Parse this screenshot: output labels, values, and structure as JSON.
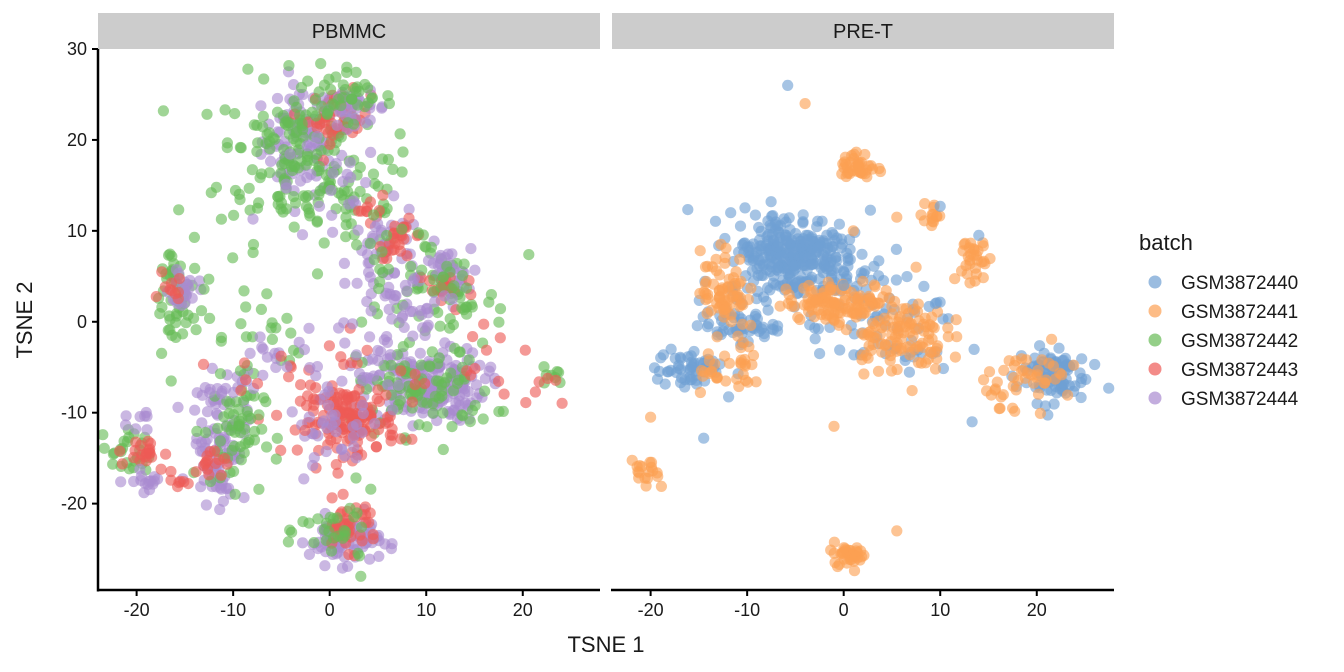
{
  "chart_data": {
    "type": "scatter",
    "xlabel": "TSNE 1",
    "ylabel": "TSNE 2",
    "xlim": [
      -24,
      28
    ],
    "ylim": [
      -29.5,
      30
    ],
    "x_ticks": [
      -20,
      -10,
      0,
      10,
      20
    ],
    "y_ticks": [
      -20,
      -10,
      0,
      10,
      20,
      30
    ],
    "grid": false,
    "legend_position": "right",
    "legend_title": "batch",
    "series": [
      {
        "name": "GSM3872440",
        "color": "#6f9fd3"
      },
      {
        "name": "GSM3872441",
        "color": "#fca052"
      },
      {
        "name": "GSM3872442",
        "color": "#66bb55"
      },
      {
        "name": "GSM3872443",
        "color": "#ee5a55"
      },
      {
        "name": "GSM3872444",
        "color": "#a98ad0"
      }
    ],
    "panels": [
      {
        "label": "PBMMC",
        "clusters": [
          {
            "series": 4,
            "cx": -3,
            "cy": 20,
            "sx": 2.0,
            "sy": 3.0,
            "n": 90
          },
          {
            "series": 2,
            "cx": -4,
            "cy": 18,
            "sx": 3.8,
            "sy": 4.5,
            "n": 140
          },
          {
            "series": 3,
            "cx": 1,
            "cy": 22.5,
            "sx": 1.6,
            "sy": 1.4,
            "n": 45
          },
          {
            "series": 4,
            "cx": 2.5,
            "cy": 23.5,
            "sx": 1.8,
            "sy": 0.9,
            "n": 30
          },
          {
            "series": 2,
            "cx": 1,
            "cy": 24.5,
            "sx": 2.8,
            "sy": 1.5,
            "n": 45
          },
          {
            "series": 2,
            "cx": 2,
            "cy": 14,
            "sx": 3.5,
            "sy": 3.0,
            "n": 45
          },
          {
            "series": 4,
            "cx": 0,
            "cy": 14,
            "sx": 3.0,
            "sy": 3.0,
            "n": 25
          },
          {
            "series": 3,
            "cx": 4,
            "cy": 12.5,
            "sx": 1.0,
            "sy": 1.0,
            "n": 10
          },
          {
            "series": 4,
            "cx": 6,
            "cy": 7,
            "sx": 2.0,
            "sy": 2.8,
            "n": 55
          },
          {
            "series": 3,
            "cx": 7.5,
            "cy": 9,
            "sx": 1.2,
            "sy": 1.0,
            "n": 25
          },
          {
            "series": 2,
            "cx": 8,
            "cy": 5,
            "sx": 4.0,
            "sy": 3.0,
            "n": 50
          },
          {
            "series": 4,
            "cx": 12,
            "cy": 5,
            "sx": 1.3,
            "sy": 1.5,
            "n": 40
          },
          {
            "series": 3,
            "cx": 12,
            "cy": 3.5,
            "sx": 1.5,
            "sy": 1.2,
            "n": 20
          },
          {
            "series": 2,
            "cx": 13,
            "cy": 3,
            "sx": 2.2,
            "sy": 2.5,
            "n": 30
          },
          {
            "series": 4,
            "cx": 9,
            "cy": 1,
            "sx": 2.5,
            "sy": 2.0,
            "n": 30
          },
          {
            "series": 4,
            "cx": 10,
            "cy": -7,
            "sx": 3.0,
            "sy": 2.0,
            "n": 190
          },
          {
            "series": 2,
            "cx": 10,
            "cy": -7.5,
            "sx": 3.5,
            "sy": 2.5,
            "n": 90
          },
          {
            "series": 3,
            "cx": 2,
            "cy": -11,
            "sx": 2.5,
            "sy": 1.8,
            "n": 140
          },
          {
            "series": 4,
            "cx": 0.5,
            "cy": -12,
            "sx": 2.5,
            "sy": 1.8,
            "n": 35
          },
          {
            "series": 4,
            "cx": 1.5,
            "cy": -24,
            "sx": 1.8,
            "sy": 1.3,
            "n": 90
          },
          {
            "series": 3,
            "cx": 2,
            "cy": -22.5,
            "sx": 1.5,
            "sy": 1.3,
            "n": 40
          },
          {
            "series": 2,
            "cx": 1,
            "cy": -23,
            "sx": 2.0,
            "sy": 2.0,
            "n": 30
          },
          {
            "series": 2,
            "cx": -16,
            "cy": 2,
            "sx": 1.2,
            "sy": 4.0,
            "n": 55
          },
          {
            "series": 4,
            "cx": -15,
            "cy": 3.5,
            "sx": 0.8,
            "sy": 1.2,
            "n": 20
          },
          {
            "series": 3,
            "cx": -16.5,
            "cy": 3.5,
            "sx": 0.6,
            "sy": 0.8,
            "n": 10
          },
          {
            "series": 4,
            "cx": -11.5,
            "cy": -13.5,
            "sx": 1.4,
            "sy": 3.2,
            "n": 90
          },
          {
            "series": 2,
            "cx": -10,
            "cy": -12,
            "sx": 1.6,
            "sy": 3.0,
            "n": 60
          },
          {
            "series": 3,
            "cx": -12.5,
            "cy": -16,
            "sx": 1.0,
            "sy": 1.0,
            "n": 15
          },
          {
            "series": 4,
            "cx": -10.5,
            "cy": -7,
            "sx": 1.0,
            "sy": 0.8,
            "n": 15
          },
          {
            "series": 2,
            "cx": -21,
            "cy": -14.5,
            "sx": 1.3,
            "sy": 1.3,
            "n": 25
          },
          {
            "series": 3,
            "cx": -19.5,
            "cy": -14.5,
            "sx": 1.2,
            "sy": 0.8,
            "n": 20
          },
          {
            "series": 4,
            "cx": -18.5,
            "cy": -17.5,
            "sx": 1.3,
            "sy": 0.6,
            "n": 15
          },
          {
            "series": 3,
            "cx": -16,
            "cy": -17.5,
            "sx": 0.6,
            "sy": 0.7,
            "n": 8
          },
          {
            "series": 4,
            "cx": -20,
            "cy": -10,
            "sx": 0.8,
            "sy": 1.0,
            "n": 8
          },
          {
            "series": 2,
            "cx": -6,
            "cy": -3,
            "sx": 1.6,
            "sy": 1.8,
            "n": 15
          },
          {
            "series": 4,
            "cx": -6.5,
            "cy": -3,
            "sx": 1.2,
            "sy": 1.2,
            "n": 10
          },
          {
            "series": 3,
            "cx": 0,
            "cy": -6,
            "sx": 5.0,
            "sy": 2.5,
            "n": 30
          },
          {
            "series": 4,
            "cx": 2,
            "cy": -4,
            "sx": 4.0,
            "sy": 3.0,
            "n": 25
          },
          {
            "series": 2,
            "cx": 23,
            "cy": -6,
            "sx": 1.0,
            "sy": 1.0,
            "n": 8
          },
          {
            "series": 3,
            "cx": 22,
            "cy": -5.5,
            "sx": 1.5,
            "sy": 2.0,
            "n": 6
          },
          {
            "series": 3,
            "cx": 16,
            "cy": -4,
            "sx": 2.5,
            "sy": 3.5,
            "n": 10
          },
          {
            "series": 2,
            "cx": -9,
            "cy": 2,
            "sx": 2.0,
            "sy": 3.0,
            "n": 10
          }
        ]
      },
      {
        "label": "PRE-T",
        "clusters": [
          {
            "series": 0,
            "cx": -6,
            "cy": 7.5,
            "sx": 3.0,
            "sy": 2.3,
            "n": 240
          },
          {
            "series": 0,
            "cx": -2,
            "cy": 6,
            "sx": 3.0,
            "sy": 2.3,
            "n": 90
          },
          {
            "series": 0,
            "cx": -11,
            "cy": -0.5,
            "sx": 2.0,
            "sy": 0.8,
            "n": 50
          },
          {
            "series": 0,
            "cx": -16,
            "cy": -5.2,
            "sx": 1.8,
            "sy": 1.2,
            "n": 55
          },
          {
            "series": 0,
            "cx": 21.5,
            "cy": -5.8,
            "sx": 1.8,
            "sy": 1.5,
            "n": 90
          },
          {
            "series": 0,
            "cx": 4,
            "cy": -1,
            "sx": 4.0,
            "sy": 2.5,
            "n": 60
          },
          {
            "series": 1,
            "cx": -12.5,
            "cy": 3.5,
            "sx": 1.2,
            "sy": 2.3,
            "n": 70
          },
          {
            "series": 1,
            "cx": 0,
            "cy": 2.2,
            "sx": 3.0,
            "sy": 1.0,
            "n": 110
          },
          {
            "series": 1,
            "cx": 5.5,
            "cy": -1.5,
            "sx": 2.5,
            "sy": 2.0,
            "n": 110
          },
          {
            "series": 1,
            "cx": 1.5,
            "cy": 17,
            "sx": 0.9,
            "sy": 0.8,
            "n": 40
          },
          {
            "series": 1,
            "cx": 0.5,
            "cy": -25.5,
            "sx": 1.0,
            "sy": 0.6,
            "n": 35
          },
          {
            "series": 1,
            "cx": -20.5,
            "cy": -17,
            "sx": 0.7,
            "sy": 0.8,
            "n": 18
          },
          {
            "series": 1,
            "cx": 13.5,
            "cy": 6.5,
            "sx": 0.7,
            "sy": 2.0,
            "n": 30
          },
          {
            "series": 1,
            "cx": 9,
            "cy": 11.5,
            "sx": 0.6,
            "sy": 0.8,
            "n": 14
          },
          {
            "series": 1,
            "cx": 19.5,
            "cy": -6,
            "sx": 2.5,
            "sy": 1.5,
            "n": 45
          },
          {
            "series": 1,
            "cx": -10.5,
            "cy": -5,
            "sx": 1.3,
            "sy": 1.3,
            "n": 22
          },
          {
            "series": 1,
            "cx": -13.5,
            "cy": -6,
            "sx": 0.8,
            "sy": 1.0,
            "n": 12
          }
        ],
        "points": [
          {
            "series": 0,
            "x": -5.8,
            "y": 26
          },
          {
            "series": 1,
            "x": -4,
            "y": 24
          },
          {
            "series": 0,
            "x": 10,
            "y": 12.7
          },
          {
            "series": 0,
            "x": 0,
            "y": 4
          },
          {
            "series": 0,
            "x": 13.3,
            "y": -11
          },
          {
            "series": 0,
            "x": -14.5,
            "y": -12.8
          },
          {
            "series": 1,
            "x": -20,
            "y": -10.5
          },
          {
            "series": 1,
            "x": 5.5,
            "y": -23
          },
          {
            "series": 1,
            "x": -1,
            "y": -11.5
          },
          {
            "series": 1,
            "x": 1,
            "y": 10
          },
          {
            "series": 1,
            "x": 5.5,
            "y": 11.5
          },
          {
            "series": 1,
            "x": 7.5,
            "y": 6
          },
          {
            "series": 1,
            "x": 17.5,
            "y": -9.5
          },
          {
            "series": 0,
            "x": 9.5,
            "y": 2
          },
          {
            "series": 0,
            "x": 14,
            "y": 9.5
          },
          {
            "series": 0,
            "x": -2.5,
            "y": -3.5
          }
        ]
      }
    ]
  }
}
